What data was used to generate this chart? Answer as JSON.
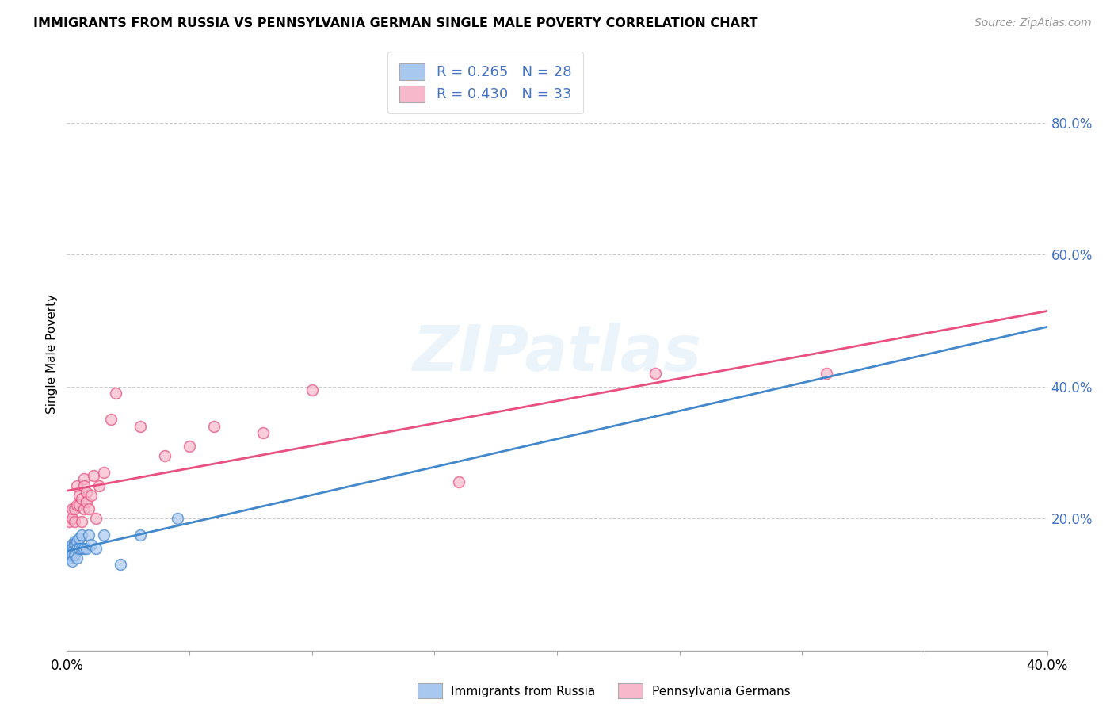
{
  "title": "IMMIGRANTS FROM RUSSIA VS PENNSYLVANIA GERMAN SINGLE MALE POVERTY CORRELATION CHART",
  "source": "Source: ZipAtlas.com",
  "ylabel": "Single Male Poverty",
  "right_yticks": [
    "80.0%",
    "60.0%",
    "40.0%",
    "20.0%"
  ],
  "right_ytick_vals": [
    0.8,
    0.6,
    0.4,
    0.2
  ],
  "legend_russia": "R = 0.265   N = 28",
  "legend_pagerman": "R = 0.430   N = 33",
  "legend_label_russia": "Immigrants from Russia",
  "legend_label_pagerman": "Pennsylvania Germans",
  "color_russia": "#a8c8f0",
  "color_pagerman": "#f8b8cc",
  "trendline_russia": "#4488cc",
  "trendline_pagerman": "#e85080",
  "background": "#ffffff",
  "xmin": 0.0,
  "xmax": 0.4,
  "ymin": 0.0,
  "ymax": 0.9,
  "russia_x": [
    0.001,
    0.001,
    0.001,
    0.001,
    0.002,
    0.002,
    0.002,
    0.002,
    0.002,
    0.003,
    0.003,
    0.003,
    0.004,
    0.004,
    0.004,
    0.005,
    0.005,
    0.006,
    0.006,
    0.007,
    0.008,
    0.009,
    0.01,
    0.012,
    0.015,
    0.022,
    0.03,
    0.045
  ],
  "russia_y": [
    0.155,
    0.15,
    0.145,
    0.14,
    0.16,
    0.155,
    0.15,
    0.145,
    0.135,
    0.165,
    0.16,
    0.145,
    0.165,
    0.155,
    0.14,
    0.17,
    0.155,
    0.175,
    0.155,
    0.155,
    0.155,
    0.175,
    0.16,
    0.155,
    0.175,
    0.13,
    0.175,
    0.2
  ],
  "pagerman_x": [
    0.001,
    0.002,
    0.002,
    0.003,
    0.003,
    0.004,
    0.004,
    0.005,
    0.005,
    0.006,
    0.006,
    0.007,
    0.007,
    0.007,
    0.008,
    0.008,
    0.009,
    0.01,
    0.011,
    0.012,
    0.013,
    0.015,
    0.018,
    0.02,
    0.03,
    0.04,
    0.05,
    0.06,
    0.08,
    0.1,
    0.16,
    0.24,
    0.31
  ],
  "pagerman_y": [
    0.195,
    0.2,
    0.215,
    0.195,
    0.215,
    0.25,
    0.22,
    0.235,
    0.22,
    0.23,
    0.195,
    0.26,
    0.25,
    0.215,
    0.24,
    0.225,
    0.215,
    0.235,
    0.265,
    0.2,
    0.25,
    0.27,
    0.35,
    0.39,
    0.34,
    0.295,
    0.31,
    0.34,
    0.33,
    0.395,
    0.255,
    0.42,
    0.42
  ],
  "marker_size": 100
}
